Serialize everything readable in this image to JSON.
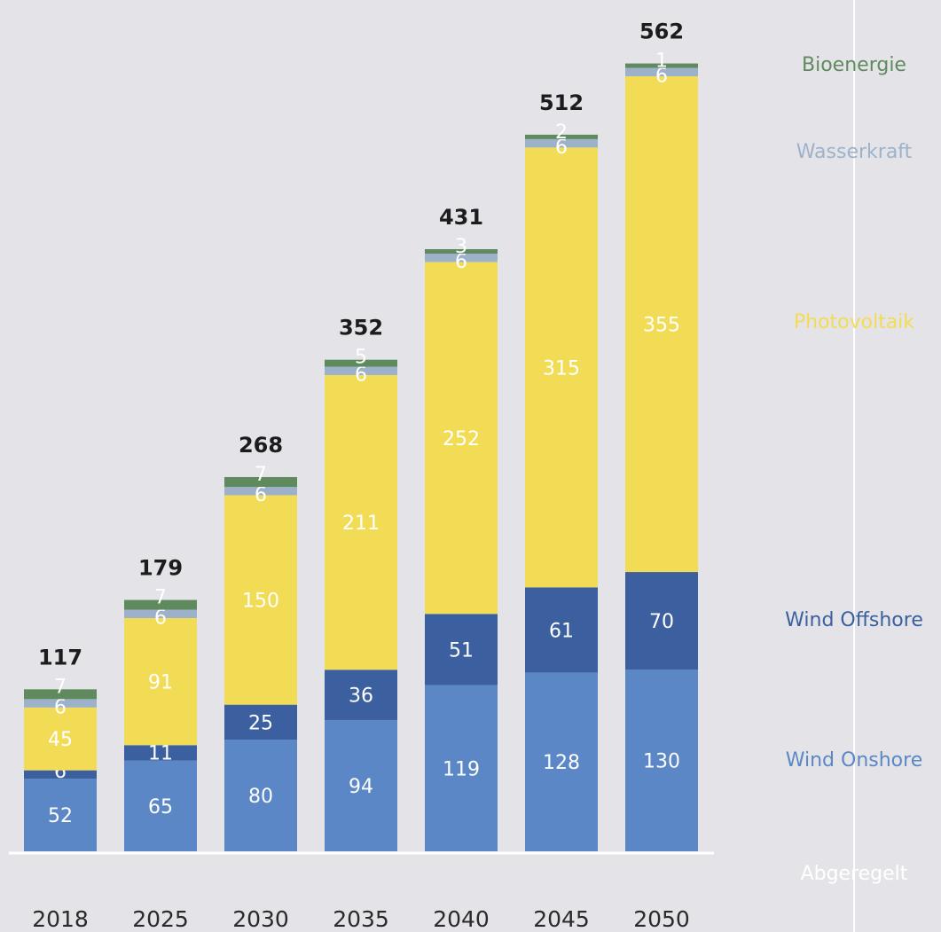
{
  "chart_data": {
    "type": "bar",
    "stacked": true,
    "categories": [
      "2018",
      "2025",
      "2030",
      "2035",
      "2040",
      "2045",
      "2050"
    ],
    "totals": [
      117,
      179,
      268,
      352,
      431,
      512,
      562
    ],
    "series": [
      {
        "name": "Wind Onshore",
        "color": "#5b87c7",
        "label_color": "#ffffff",
        "values": [
          52,
          65,
          80,
          94,
          119,
          128,
          130
        ]
      },
      {
        "name": "Wind Offshore",
        "color": "#3b5f9f",
        "label_color": "#ffffff",
        "values": [
          6,
          11,
          25,
          36,
          51,
          61,
          70
        ]
      },
      {
        "name": "Photovoltaik",
        "color": "#f2dc55",
        "label_color": "#ffffff",
        "values": [
          45,
          91,
          150,
          211,
          252,
          315,
          355
        ]
      },
      {
        "name": "Wasserkraft",
        "color": "#9db2ca",
        "label_color": "#ffffff",
        "values": [
          6,
          6,
          6,
          6,
          6,
          6,
          6
        ]
      },
      {
        "name": "Bioenergie",
        "color": "#5f8a5e",
        "label_color": "#ffffff",
        "values": [
          7,
          7,
          7,
          5,
          3,
          2,
          1
        ]
      }
    ],
    "legend": [
      {
        "name": "Bioenergie",
        "color": "#5f8a5e"
      },
      {
        "name": "Wasserkraft",
        "color": "#9db2ca"
      },
      {
        "name": "Photovoltaik",
        "color": "#f2dc55"
      },
      {
        "name": "Wind Offshore",
        "color": "#3b5f9f"
      },
      {
        "name": "Wind Onshore",
        "color": "#5b87c7"
      },
      {
        "name": "Abgeregelt",
        "color": "#ffffff"
      }
    ],
    "legend_position": "right",
    "ylim": [
      0,
      562
    ],
    "grid": false,
    "title": "",
    "xlabel": "",
    "ylabel": ""
  }
}
